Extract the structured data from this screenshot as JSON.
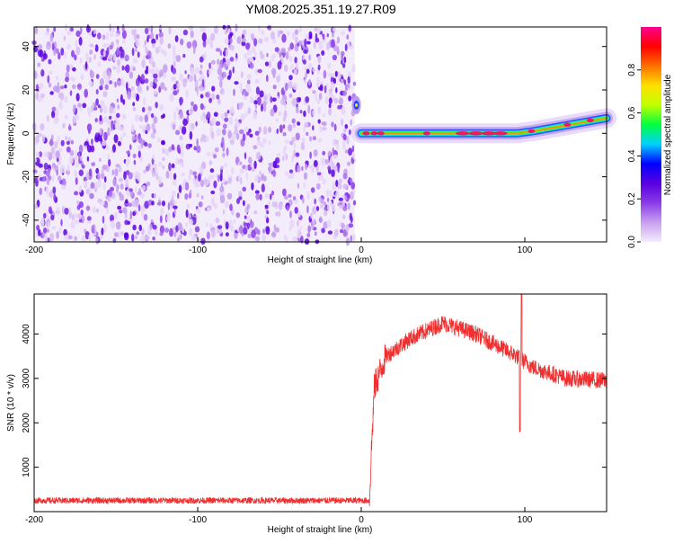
{
  "title": "YM08.2025.351.19.27.R09",
  "chart_data": [
    {
      "type": "heatmap",
      "xlabel": "Height of straight line (km)",
      "ylabel": "Frequency (Hz)",
      "xlim": [
        -200,
        150
      ],
      "ylim": [
        -50,
        49
      ],
      "xticks": [
        "-200",
        "-100",
        "0",
        "100"
      ],
      "yticks": [
        "-40",
        "-20",
        "0",
        "20",
        "40"
      ],
      "noise_region_x": [
        -200,
        -4
      ],
      "signal_track": [
        {
          "x": -3,
          "y": 13
        },
        {
          "x": 0,
          "y": 0
        },
        {
          "x": 20,
          "y": 0
        },
        {
          "x": 40,
          "y": 0
        },
        {
          "x": 60,
          "y": 0
        },
        {
          "x": 80,
          "y": 0
        },
        {
          "x": 95,
          "y": 0
        },
        {
          "x": 105,
          "y": 1
        },
        {
          "x": 120,
          "y": 3
        },
        {
          "x": 135,
          "y": 5
        },
        {
          "x": 150,
          "y": 7
        }
      ],
      "colorbar": {
        "label": "Normalized spectral amplitude",
        "ticks": [
          "0.0",
          "0.2",
          "0.4",
          "0.6",
          "0.8"
        ],
        "range": [
          0,
          1
        ],
        "colors": [
          "#f4ecfc",
          "#c8a0f0",
          "#8a3be8",
          "#5a00e0",
          "#0000ff",
          "#00d0ff",
          "#00ff40",
          "#c0ff00",
          "#ffe000",
          "#ff7000",
          "#ff0000",
          "#ff0090"
        ]
      }
    },
    {
      "type": "line",
      "xlabel": "Height of straight line (km)",
      "ylabel": "SNR (10 * v/v)",
      "xlim": [
        -200,
        150
      ],
      "ylim": [
        0,
        4900
      ],
      "xticks": [
        "-200",
        "-100",
        "0",
        "100"
      ],
      "yticks": [
        "1000",
        "2000",
        "3000",
        "4000"
      ],
      "color": "#f03030",
      "envelope": [
        {
          "x": -200,
          "y": 250
        },
        {
          "x": 5,
          "y": 250
        },
        {
          "x": 6,
          "y": 1200
        },
        {
          "x": 8,
          "y": 2800
        },
        {
          "x": 15,
          "y": 3500
        },
        {
          "x": 30,
          "y": 3900
        },
        {
          "x": 50,
          "y": 4250
        },
        {
          "x": 70,
          "y": 4000
        },
        {
          "x": 85,
          "y": 3700
        },
        {
          "x": 95,
          "y": 3500
        },
        {
          "x": 105,
          "y": 3250
        },
        {
          "x": 125,
          "y": 3000
        },
        {
          "x": 150,
          "y": 2950
        }
      ],
      "spikes": [
        {
          "x": 97,
          "y": 1800
        },
        {
          "x": 98,
          "y": 4900
        }
      ]
    }
  ]
}
